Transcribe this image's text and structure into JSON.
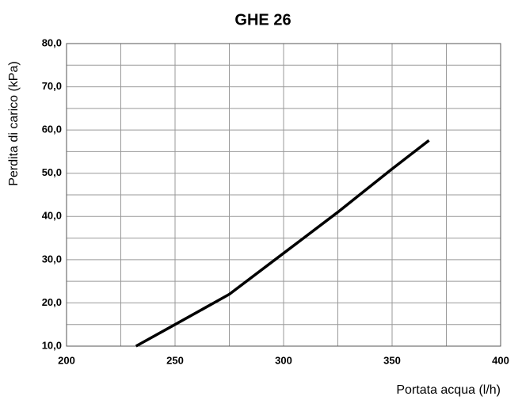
{
  "chart_data": {
    "type": "line",
    "title": "GHE 26",
    "x_label": "Portata acqua (l/h)",
    "y_label": "Perdita di carico (kPa)",
    "x": [
      232,
      250,
      275,
      300,
      325,
      350,
      367
    ],
    "series": [
      {
        "color": "#000000",
        "values": [
          10,
          15,
          22,
          31.5,
          41,
          51,
          57.6
        ]
      }
    ],
    "xlim": [
      200,
      400
    ],
    "xticks": [
      200,
      250,
      300,
      350,
      400
    ],
    "x_minor_ticks": [
      225,
      275,
      325,
      375
    ],
    "ylim": [
      10,
      80
    ],
    "yticks": [
      {
        "value": 10,
        "label": "10,0"
      },
      {
        "value": 20,
        "label": "20,0"
      },
      {
        "value": 30,
        "label": "30,0"
      },
      {
        "value": 40,
        "label": "40,0"
      },
      {
        "value": 50,
        "label": "50,0"
      },
      {
        "value": 60,
        "label": "60,0"
      },
      {
        "value": 70,
        "label": "70,0"
      },
      {
        "value": 80,
        "label": "80,0"
      }
    ],
    "y_minor_ticks": [
      15,
      25,
      35,
      45,
      55,
      65,
      75
    ],
    "grid": true
  }
}
